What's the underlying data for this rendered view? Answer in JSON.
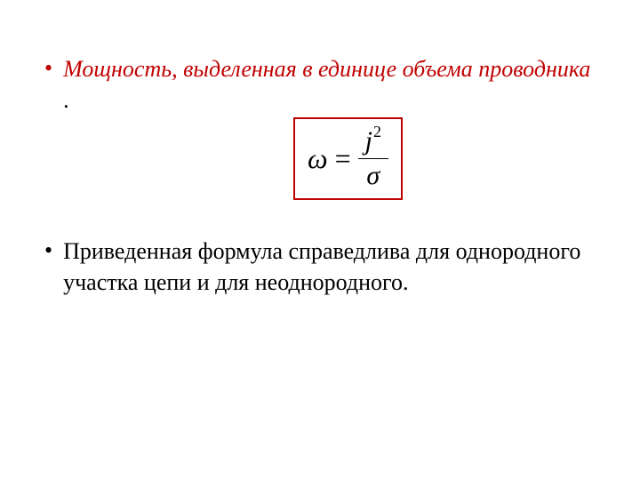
{
  "item1": {
    "bullet": "•",
    "text_italic": "Мощность, выделенная в единице объема проводника",
    "period": " ."
  },
  "formula": {
    "omega": "ω",
    "equals": "=",
    "j": "j",
    "exponent": "2",
    "sigma": "σ",
    "border_color": "#c00000"
  },
  "item2": {
    "bullet": "•",
    "text": "Приведенная формула справедлива для однородного участка цепи и для неоднородного."
  },
  "colors": {
    "accent": "#c00000",
    "text": "#000000",
    "background": "#ffffff"
  }
}
